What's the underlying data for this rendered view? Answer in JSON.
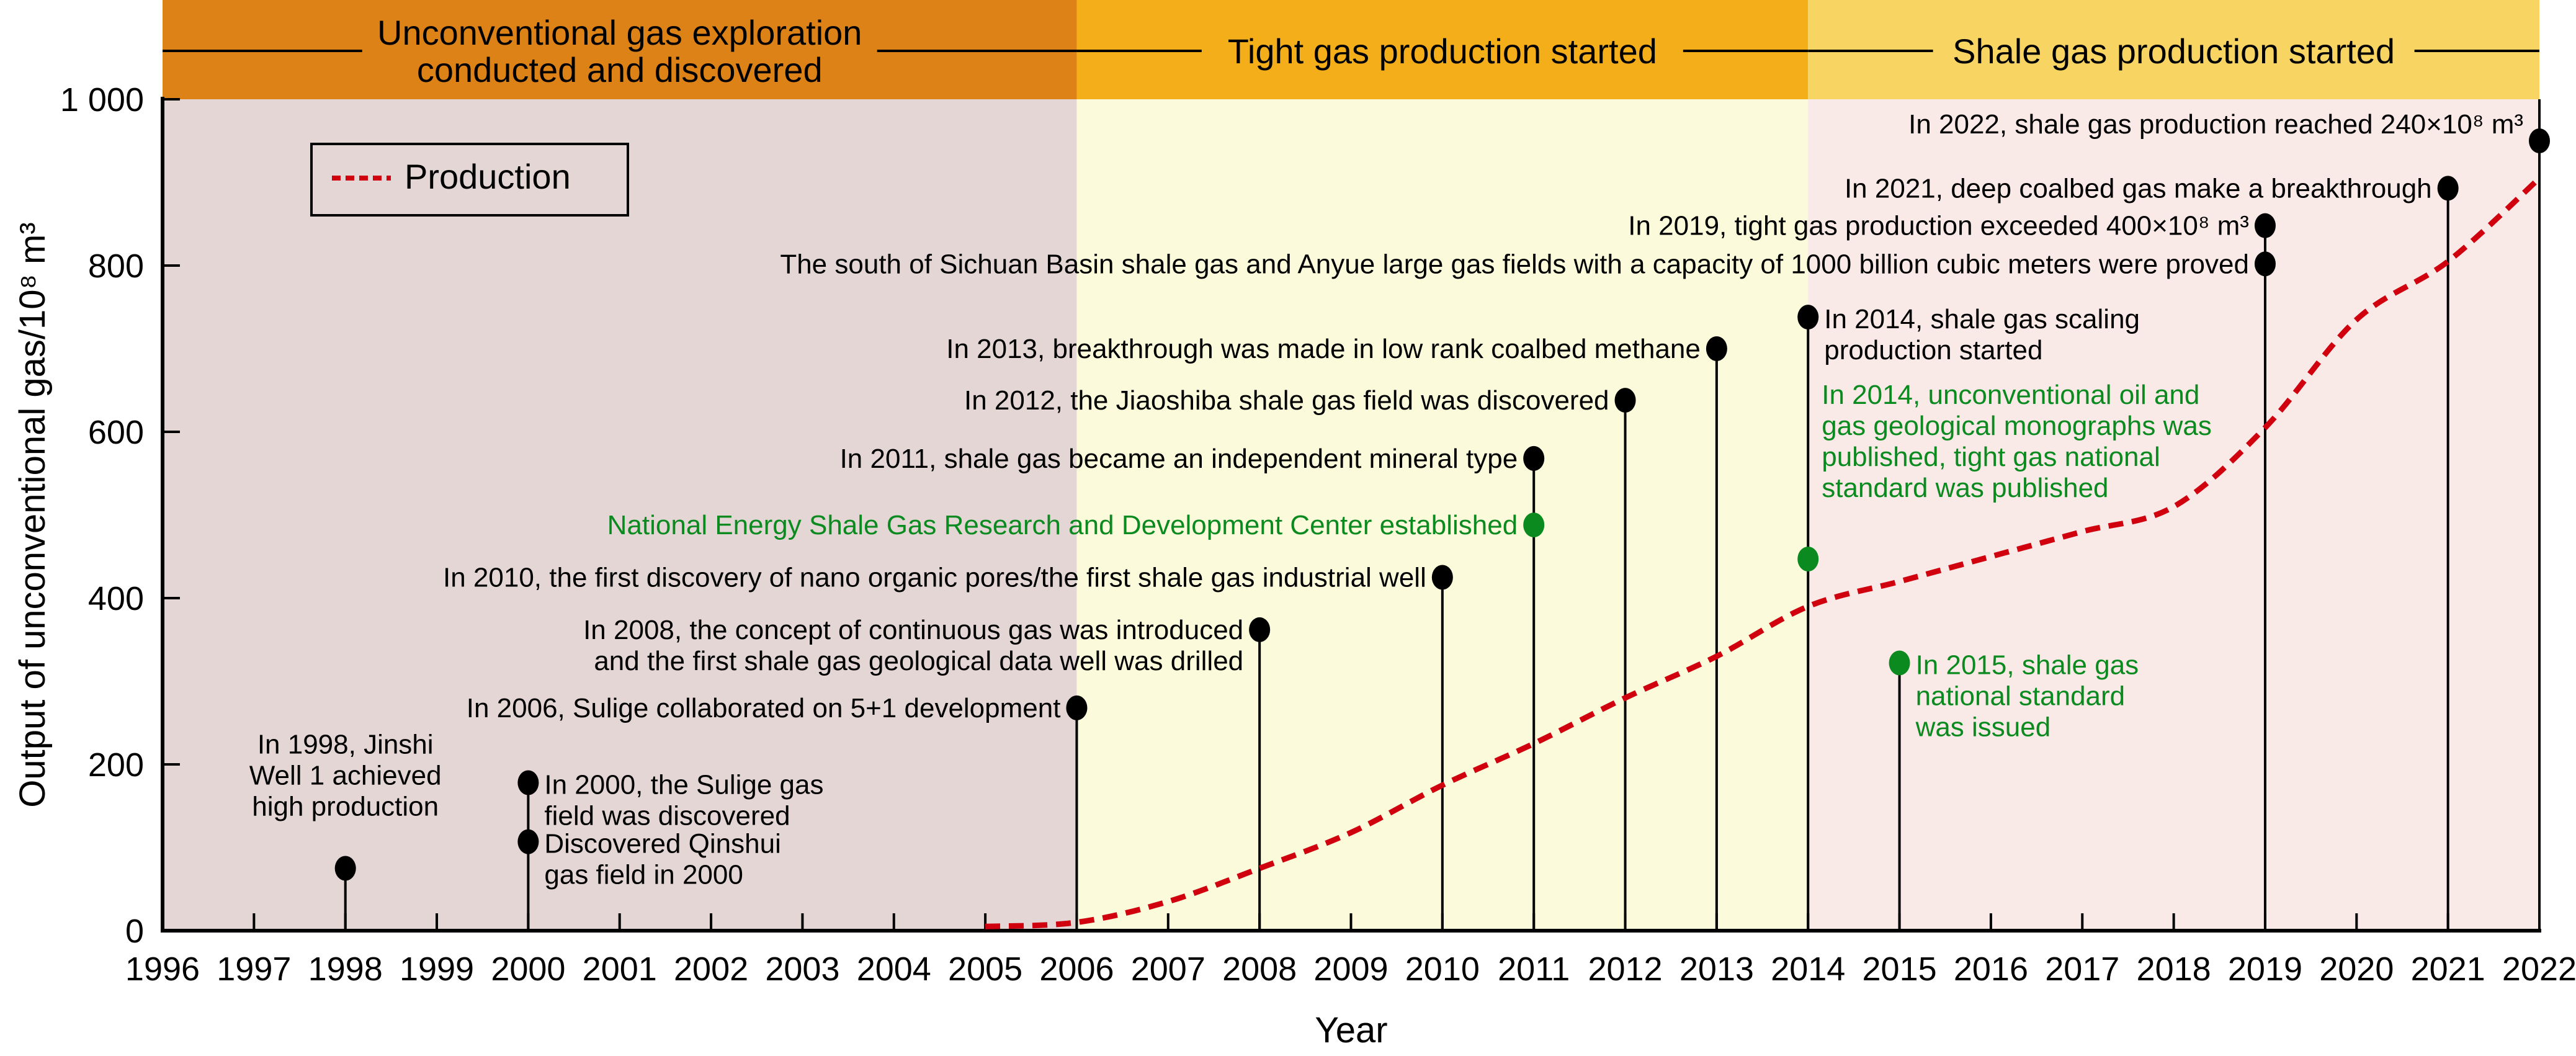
{
  "chart_data": {
    "type": "line",
    "title": "",
    "xlabel": "Year",
    "ylabel": "Output of unconventional gas/10⁸ m³",
    "xlim": [
      1996,
      2022
    ],
    "ylim": [
      0,
      1000
    ],
    "x_ticks": [
      "1996",
      "1997",
      "1998",
      "1999",
      "2000",
      "2001",
      "2002",
      "2003",
      "2004",
      "2005",
      "2006",
      "2007",
      "2008",
      "2009",
      "2010",
      "2011",
      "2012",
      "2013",
      "2014",
      "2015",
      "2016",
      "2017",
      "2018",
      "2019",
      "2020",
      "2021",
      "2022"
    ],
    "y_ticks": [
      "0",
      "200",
      "400",
      "600",
      "800",
      "1 000"
    ],
    "y_tick_values": [
      0,
      200,
      400,
      600,
      800,
      1000
    ],
    "grid": false,
    "legend": {
      "position": "top-left",
      "entries": [
        {
          "name": "Production",
          "style": "dashed",
          "color": "#d0000f"
        }
      ]
    },
    "series": [
      {
        "name": "Production",
        "color": "#d0000f",
        "x": [
          2005,
          2006,
          2007,
          2008,
          2009,
          2010,
          2011,
          2012,
          2013,
          2014,
          2015,
          2016,
          2017,
          2018,
          2019,
          2020,
          2021,
          2022
        ],
        "y": [
          5,
          10,
          35,
          75,
          118,
          175,
          225,
          280,
          330,
          390,
          420,
          450,
          480,
          510,
          605,
          735,
          805,
          905
        ]
      }
    ],
    "phases": [
      {
        "label_lines": [
          "Unconventional gas exploration",
          "conducted and discovered"
        ],
        "from": 1996,
        "to": 2006,
        "band_color": "#dc8216",
        "bg_color": "#e3d6d4"
      },
      {
        "label_lines": [
          "Tight gas production started"
        ],
        "from": 2006,
        "to": 2014,
        "band_color": "#f3ae19",
        "bg_color": "#fbfadb"
      },
      {
        "label_lines": [
          "Shale gas production started"
        ],
        "from": 2014,
        "to": 2022,
        "band_color": "#f8d463",
        "bg_color": "#faeae7"
      }
    ],
    "events": [
      {
        "year": 1998,
        "value": 75,
        "color": "black",
        "side": "above",
        "lines": [
          "In 1998, Jinshi",
          "Well 1 achieved",
          "high production"
        ]
      },
      {
        "year": 2000,
        "value": 178,
        "color": "black",
        "side": "right",
        "lines": [
          "In 2000, the Sulige gas",
          "field was discovered"
        ]
      },
      {
        "year": 2000,
        "value": 107,
        "color": "black",
        "side": "right",
        "lines": [
          "Discovered Qinshui",
          "gas field in 2000"
        ]
      },
      {
        "year": 2006,
        "value": 268,
        "color": "black",
        "side": "left",
        "lines": [
          "In 2006, Sulige collaborated on 5+1 development"
        ]
      },
      {
        "year": 2008,
        "value": 362,
        "color": "black",
        "side": "left",
        "lines": [
          "In 2008, the concept of continuous gas was introduced",
          "and the first shale gas geological data well was drilled"
        ]
      },
      {
        "year": 2010,
        "value": 425,
        "color": "black",
        "side": "left",
        "lines": [
          "In 2010, the first discovery of nano organic pores/the first shale gas industrial well"
        ]
      },
      {
        "year": 2011,
        "value": 568,
        "color": "black",
        "side": "left",
        "lines": [
          "In 2011, shale gas became an independent mineral type"
        ]
      },
      {
        "year": 2011,
        "value": 488,
        "color": "green",
        "side": "left",
        "lines": [
          "National Energy Shale Gas Research and Development Center established"
        ]
      },
      {
        "year": 2012,
        "value": 638,
        "color": "black",
        "side": "left",
        "lines": [
          "In 2012, the Jiaoshiba shale gas field was discovered"
        ]
      },
      {
        "year": 2013,
        "value": 700,
        "color": "black",
        "side": "left",
        "lines": [
          "In 2013, breakthrough was made in low rank coalbed methane"
        ]
      },
      {
        "year": 2014,
        "value": 738,
        "color": "black",
        "side": "right",
        "lines": [
          "In 2014, shale gas scaling",
          "production started"
        ]
      },
      {
        "year": 2014,
        "value": 447,
        "color": "green",
        "side": "right-above",
        "lines": [
          "In 2014, unconventional oil and",
          "gas geological monographs was",
          "published, tight gas national",
          "standard was published"
        ]
      },
      {
        "year": 2015,
        "value": 322,
        "color": "green",
        "side": "right",
        "lines": [
          "In 2015, shale gas",
          "national standard",
          "was issued"
        ]
      },
      {
        "year": 2019,
        "value": 848,
        "color": "black",
        "side": "left",
        "lines": [
          "In 2019, tight gas production exceeded 400×10⁸ m³"
        ]
      },
      {
        "year": 2019,
        "value": 802,
        "color": "black",
        "side": "left",
        "lines": [
          "The south of Sichuan Basin  shale gas and Anyue large gas fields with a capacity of 1000 billion cubic meters were proved"
        ]
      },
      {
        "year": 2021,
        "value": 893,
        "color": "black",
        "side": "left",
        "lines": [
          "In 2021, deep coalbed gas make a breakthrough"
        ]
      },
      {
        "year": 2022,
        "value": 950,
        "color": "black",
        "side": "left-above",
        "lines": [
          "In 2022, shale gas production reached 240×10⁸ m³"
        ]
      }
    ]
  }
}
